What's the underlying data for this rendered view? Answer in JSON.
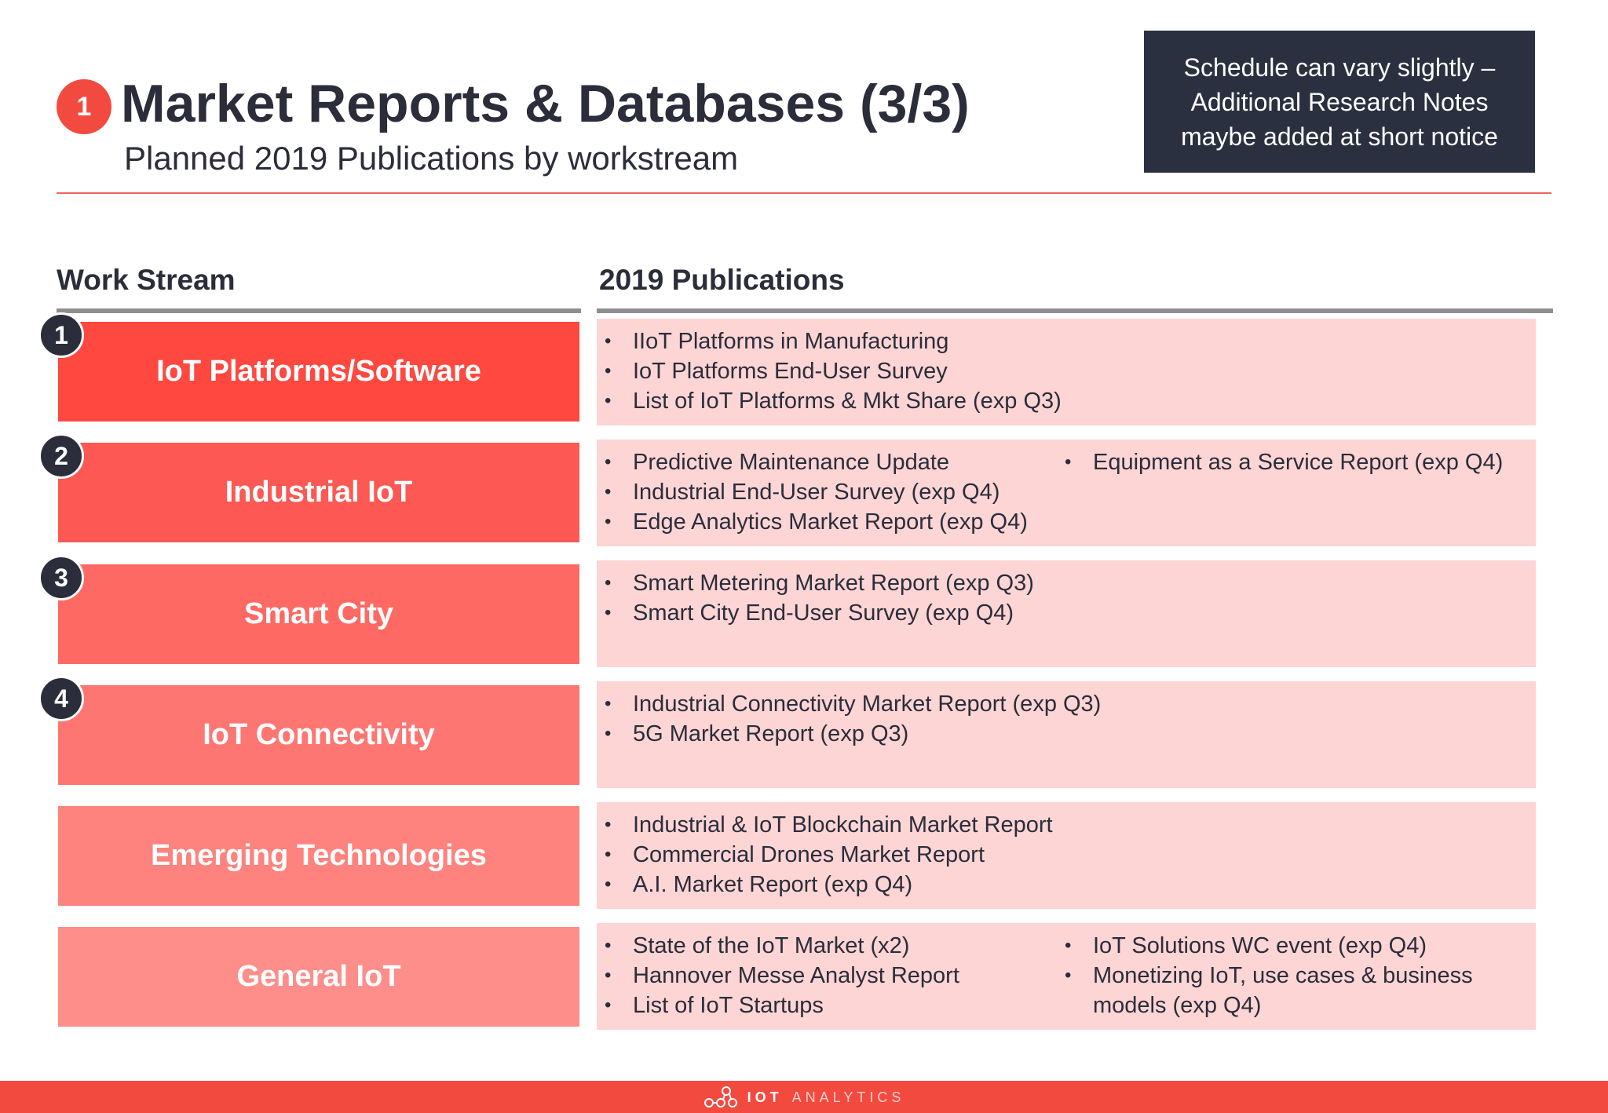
{
  "header": {
    "badge": "1",
    "title": "Market Reports & Databases (3/3)",
    "subtitle": "Planned 2019 Publications by workstream"
  },
  "notice": {
    "lines": [
      "Schedule can vary slightly –",
      "Additional Research Notes",
      "maybe added at short notice"
    ]
  },
  "columns": {
    "work_stream": "Work Stream",
    "publications": "2019 Publications"
  },
  "rows": [
    {
      "number": "1",
      "stream": "IoT Platforms/Software",
      "color": "#fe4840",
      "pubs_col1": [
        "IIoT Platforms in Manufacturing",
        "IoT Platforms End-User Survey",
        "List of IoT Platforms & Mkt Share (exp Q3)"
      ],
      "pubs_col2": []
    },
    {
      "number": "2",
      "stream": "Industrial IoT",
      "color": "#fd5853",
      "pubs_col1": [
        "Predictive Maintenance Update",
        "Industrial End-User Survey (exp Q4)",
        "Edge Analytics Market Report (exp Q4)"
      ],
      "pubs_col2": [
        "Equipment as a Service Report (exp Q4)"
      ]
    },
    {
      "number": "3",
      "stream": "Smart City",
      "color": "#fe6a63",
      "pubs_col1": [
        "Smart Metering Market Report (exp Q3)",
        "Smart City End-User Survey (exp Q4)"
      ],
      "pubs_col2": []
    },
    {
      "number": "4",
      "stream": "IoT Connectivity",
      "color": "#fe7672",
      "pubs_col1": [
        "Industrial Connectivity Market Report (exp Q3)",
        "5G Market Report (exp Q3)"
      ],
      "pubs_col2": []
    },
    {
      "number": "",
      "stream": "Emerging Technologies",
      "color": "#fe827d",
      "pubs_col1": [
        "Industrial & IoT Blockchain Market Report",
        "Commercial Drones Market Report",
        "A.I. Market Report (exp Q4)"
      ],
      "pubs_col2": []
    },
    {
      "number": "",
      "stream": "General IoT",
      "color": "#fe8e8a",
      "pubs_col1": [
        "State of the IoT Market (x2)",
        "Hannover Messe Analyst Report",
        "List of IoT Startups"
      ],
      "pubs_col2": [
        "IoT Solutions WC event (exp Q4)",
        "Monetizing IoT, use cases & business models (exp Q4)"
      ]
    }
  ],
  "footer": {
    "logo_bold": "IOT",
    "logo_light": "ANALYTICS"
  }
}
